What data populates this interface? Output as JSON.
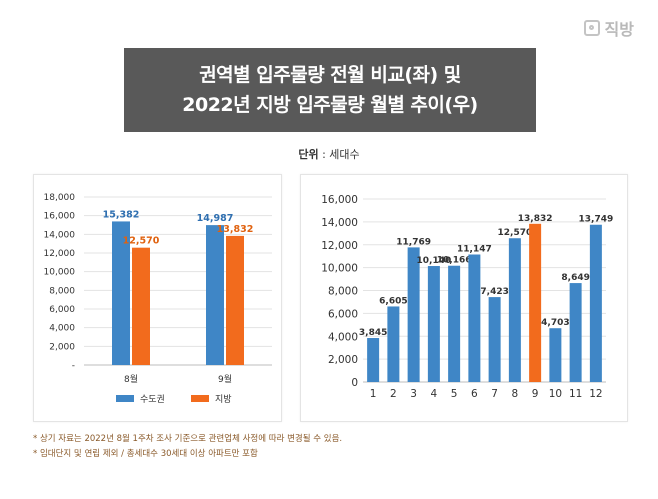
{
  "brand": {
    "name": "직방",
    "icon": "zigbang-logo-icon"
  },
  "title": {
    "line1": "권역별 입주물량 전월 비교(좌) 및",
    "line2": "2022년 지방 입주물량 월별 추이(우)"
  },
  "unit": {
    "label": "단위",
    "separator": " : ",
    "value": "세대수"
  },
  "colors": {
    "blue": "#3f86c6",
    "orange": "#f26b1d",
    "title_bg": "#595959",
    "blue_label": "#2f6fb0",
    "orange_label": "#e0620f"
  },
  "chart_data": [
    {
      "type": "bar",
      "categories": [
        "8월",
        "9월"
      ],
      "series": [
        {
          "name": "수도권",
          "values": [
            15382,
            14987
          ],
          "value_labels": [
            "15,382",
            "14,987"
          ],
          "color": "#3f86c6"
        },
        {
          "name": "지방",
          "values": [
            12570,
            13832
          ],
          "value_labels": [
            "12,570",
            "13,832"
          ],
          "color": "#f26b1d"
        }
      ],
      "ylim": [
        0,
        18000
      ],
      "yticks": [
        0,
        2000,
        4000,
        6000,
        8000,
        10000,
        12000,
        14000,
        16000,
        18000
      ],
      "ytick_labels": [
        "-",
        "2,000",
        "4,000",
        "6,000",
        "8,000",
        "10,000",
        "12,000",
        "14,000",
        "16,000",
        "18,000"
      ],
      "grid": true,
      "legend_position": "bottom"
    },
    {
      "type": "bar",
      "categories": [
        "1",
        "2",
        "3",
        "4",
        "5",
        "6",
        "7",
        "8",
        "9",
        "10",
        "11",
        "12"
      ],
      "values": [
        3845,
        6605,
        11769,
        10140,
        10166,
        11147,
        7423,
        12570,
        13832,
        4703,
        8649,
        13749
      ],
      "value_labels": [
        "3,845",
        "6,605",
        "11,769",
        "10,140",
        "10,166",
        "11,147",
        "7,423",
        "12,570",
        "13,832",
        "4,703",
        "8,649",
        "13,749"
      ],
      "highlight_index": 8,
      "ylim": [
        0,
        16000
      ],
      "yticks": [
        0,
        2000,
        4000,
        6000,
        8000,
        10000,
        12000,
        14000,
        16000
      ],
      "ytick_labels": [
        "0",
        "2,000",
        "4,000",
        "6,000",
        "8,000",
        "10,000",
        "12,000",
        "14,000",
        "16,000"
      ],
      "grid": true
    }
  ],
  "notes": [
    "* 상기 자료는 2022년 8월 1주차 조사 기준으로 관련업체 사정에 따라 변경될 수 있음.",
    "* 임대단지 및 연립 제외 / 총세대수 30세대 이상 아파트만 포함"
  ]
}
